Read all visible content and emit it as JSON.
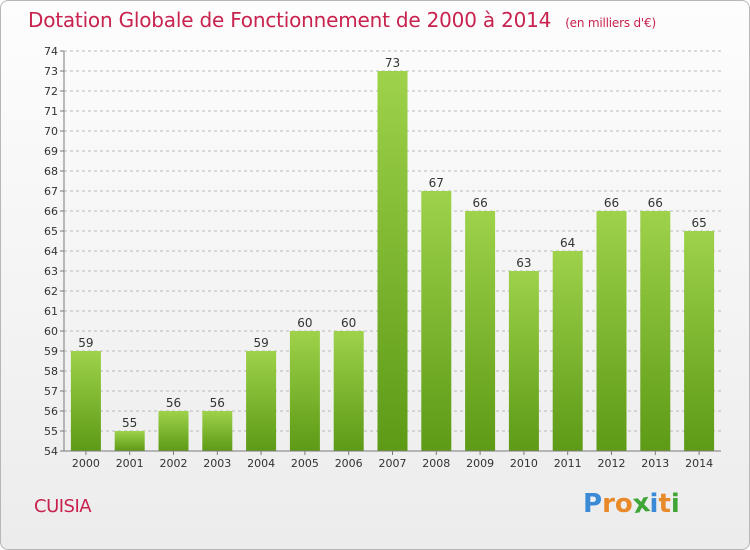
{
  "header": {
    "title": "Dotation Globale de Fonctionnement de 2000 à 2014",
    "subtitle": "(en milliers d'€)"
  },
  "footer": {
    "commune": "CUISIA",
    "brand_letters": [
      {
        "char": "P",
        "color": "#3a8ad6"
      },
      {
        "char": "r",
        "color": "#e8892a"
      },
      {
        "char": "o",
        "color": "#e8892a"
      },
      {
        "char": "x",
        "color": "#3fa535"
      },
      {
        "char": "i",
        "color": "#3a8ad6"
      },
      {
        "char": "t",
        "color": "#e8892a"
      },
      {
        "char": "i",
        "color": "#3fa535"
      }
    ]
  },
  "colors": {
    "title": "#c8224e",
    "bar_light": "#9ed24a",
    "bar_dark": "#5d9a16",
    "grid": "#b9b9b9",
    "axis": "#7a7a7a",
    "label": "#333333"
  },
  "chart_data": {
    "type": "bar",
    "title": "Dotation Globale de Fonctionnement de 2000 à 2014",
    "subtitle": "(en milliers d'€)",
    "xlabel": "",
    "ylabel": "",
    "categories": [
      "2000",
      "2001",
      "2002",
      "2003",
      "2004",
      "2005",
      "2006",
      "2007",
      "2008",
      "2009",
      "2010",
      "2011",
      "2012",
      "2013",
      "2014"
    ],
    "values": [
      59,
      55,
      56,
      56,
      59,
      60,
      60,
      73,
      67,
      66,
      63,
      64,
      66,
      66,
      65
    ],
    "ylim": [
      54,
      74
    ],
    "yticks": [
      54,
      55,
      56,
      57,
      58,
      59,
      60,
      61,
      62,
      63,
      64,
      65,
      66,
      67,
      68,
      69,
      70,
      71,
      72,
      73,
      74
    ],
    "grid": "dashed horizontal",
    "legend": "none"
  }
}
